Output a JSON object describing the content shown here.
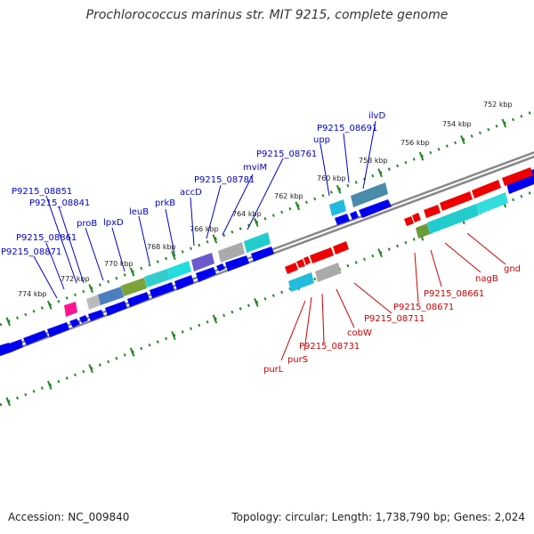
{
  "title": "Prochlorococcus marinus str. MIT 9215, complete genome",
  "footer": {
    "accession": "Accession: NC_009840",
    "summary": "Topology: circular; Length: 1,738,790 bp; Genes: 2,024"
  },
  "colors": {
    "forward_label": "#0000cc",
    "reverse_label": "#cc0000",
    "tick": "#228822",
    "forward_gene": "#0000ee",
    "reverse_gene": "#ee0000",
    "backbone": "#777777"
  },
  "scale_labels": [
    "752 kbp",
    "754 kbp",
    "756 kbp",
    "758 kbp",
    "760 kbp",
    "762 kbp",
    "764 kbp",
    "766 kbp",
    "768 kbp",
    "770 kbp",
    "772 kbp",
    "774 kbp"
  ],
  "forward_labels": [
    "ilvD",
    "P9215_08691",
    "upp",
    "P9215_08761",
    "mviM",
    "P9215_08781",
    "accD",
    "prkB",
    "leuB",
    "lpxD",
    "proB",
    "P9215_08851",
    "P9215_08841",
    "P9215_08861",
    "P9215_08871"
  ],
  "reverse_labels": [
    "gnd",
    "nagB",
    "P9215_08661",
    "P9215_08671",
    "P9215_08711",
    "cobW",
    "P9215_08731",
    "purS",
    "purL"
  ]
}
